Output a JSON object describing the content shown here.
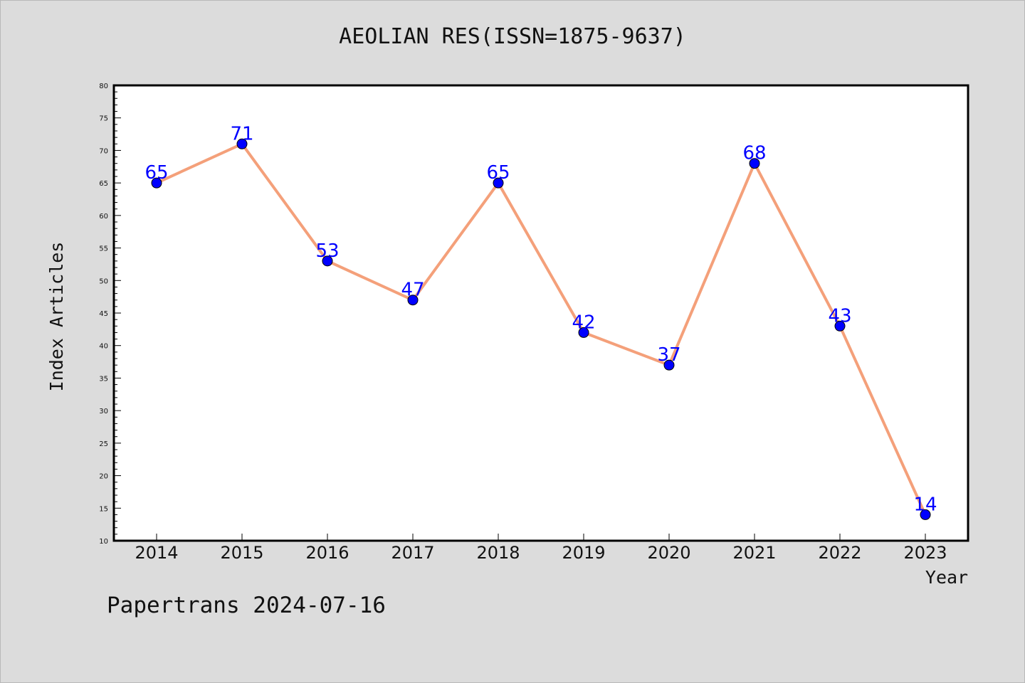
{
  "title": "AEOLIAN RES(ISSN=1875-9637)",
  "footer": "Papertrans 2024-07-16",
  "chart_data": {
    "type": "line",
    "title": "AEOLIAN RES(ISSN=1875-9637)",
    "xlabel": "Year",
    "ylabel": "Index Articles",
    "categories": [
      "2014",
      "2015",
      "2016",
      "2017",
      "2018",
      "2019",
      "2020",
      "2021",
      "2022",
      "2023"
    ],
    "series": [
      {
        "values": [
          65,
          71,
          53,
          47,
          65,
          42,
          37,
          68,
          43,
          14
        ]
      }
    ],
    "ylim": [
      10,
      80
    ],
    "yticks": [
      10,
      15,
      20,
      25,
      30,
      35,
      40,
      45,
      50,
      55,
      60,
      65,
      70,
      75,
      80
    ],
    "grid": false,
    "data_labels": true,
    "colors": {
      "line": "#f4a07a",
      "marker": "#0000ff",
      "data_label": "#0000ff",
      "plot_background": "#ffffff",
      "page_background": "#dcdcdc"
    }
  }
}
